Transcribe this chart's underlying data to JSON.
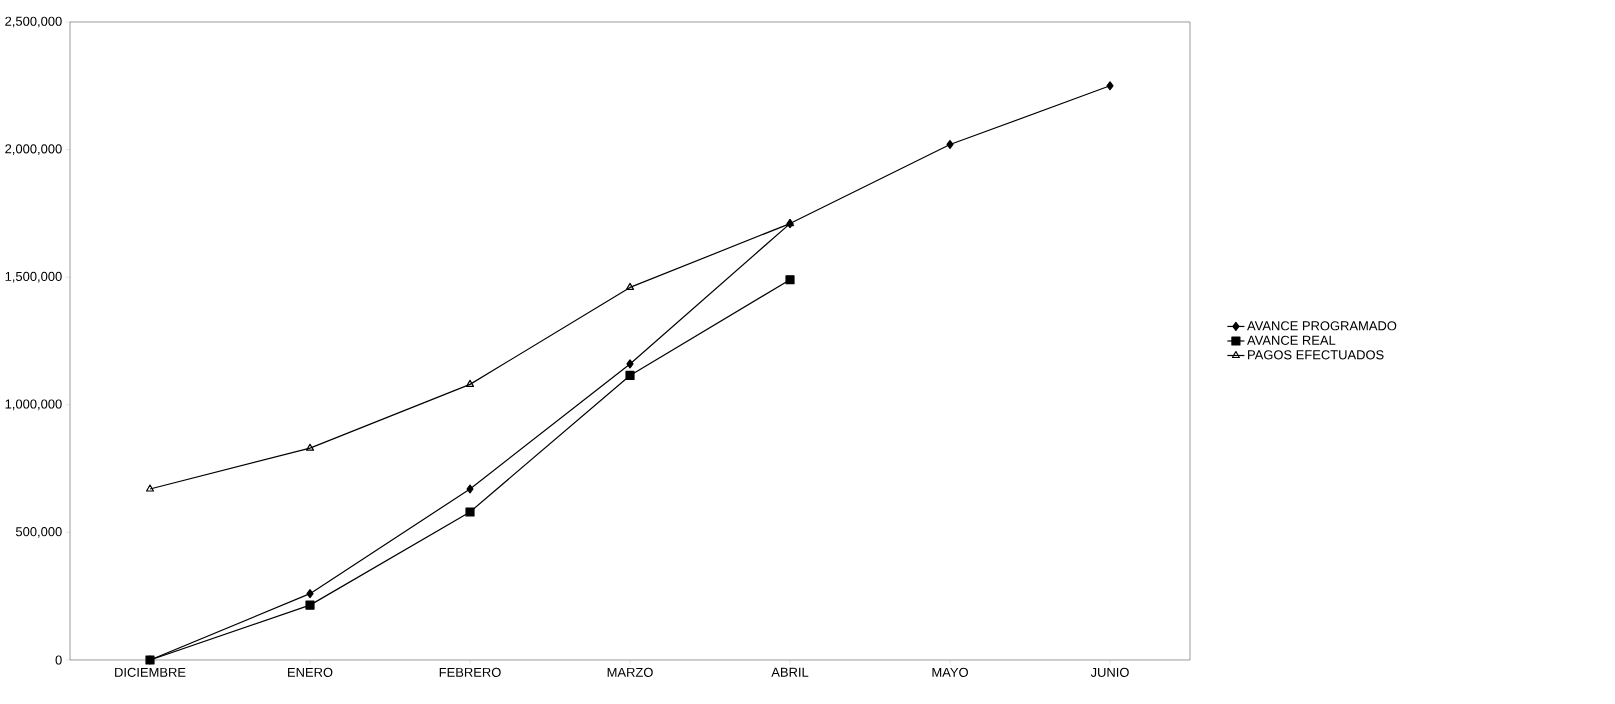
{
  "chart_data": {
    "type": "line",
    "categories": [
      "DICIEMBRE",
      "ENERO",
      "FEBRERO",
      "MARZO",
      "ABRIL",
      "MAYO",
      "JUNIO"
    ],
    "series": [
      {
        "name": "AVANCE PROGRAMADO",
        "color": "#000000",
        "marker": "diamond",
        "values": [
          0,
          260000,
          670000,
          1160000,
          1710000,
          2020000,
          2250000
        ]
      },
      {
        "name": "AVANCE REAL",
        "color": "#000000",
        "marker": "square",
        "values": [
          0,
          215000,
          580000,
          1115000,
          1490000,
          null,
          null
        ]
      },
      {
        "name": "PAGOS EFECTUADOS",
        "color": "#000000",
        "marker": "triangle",
        "values": [
          670000,
          830000,
          1080000,
          1460000,
          1710000,
          null,
          null
        ]
      }
    ],
    "ylim": [
      0,
      2500000
    ],
    "yticks": [
      {
        "value": 0,
        "label": "0"
      },
      {
        "value": 500000,
        "label": "500,000"
      },
      {
        "value": 1000000,
        "label": "1,000,000"
      },
      {
        "value": 1500000,
        "label": "1,500,000"
      },
      {
        "value": 2000000,
        "label": "2,000,000"
      },
      {
        "value": 2500000,
        "label": "2,500,000"
      }
    ],
    "legend": "right",
    "line_style": "solid"
  }
}
